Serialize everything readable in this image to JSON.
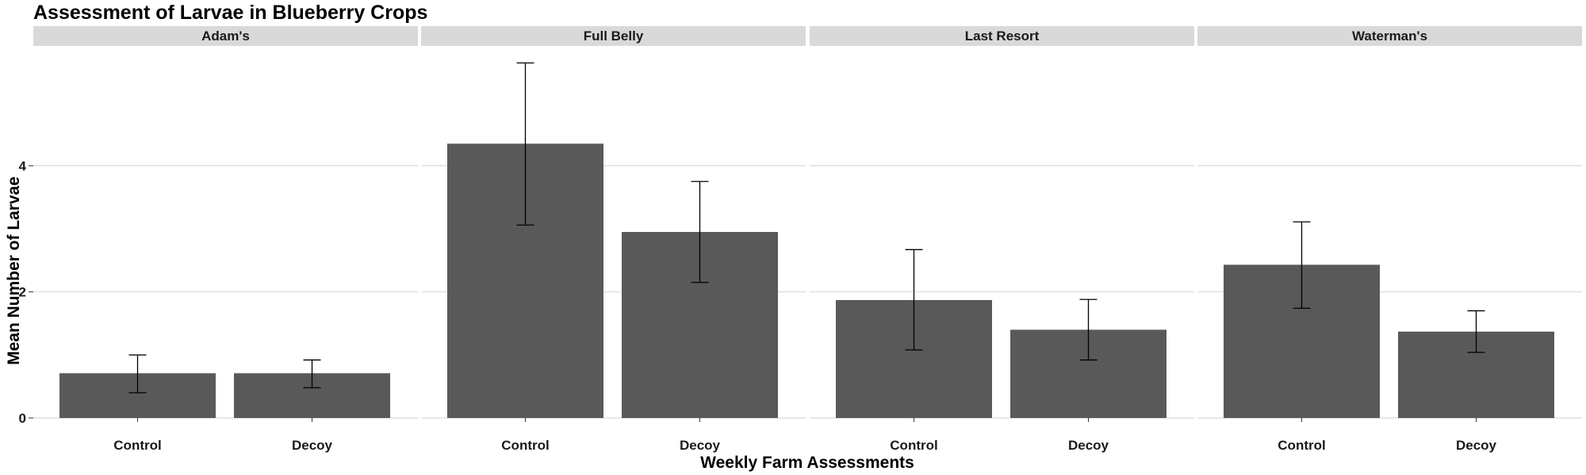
{
  "chart_data": {
    "type": "bar",
    "title": "Assessment of Larvae in Blueberry Crops",
    "xlabel": "Weekly Farm Assessments",
    "ylabel": "Mean Number of Larvae",
    "ylim": [
      0,
      5.9
    ],
    "y_ticks": [
      0,
      2,
      4
    ],
    "grid": true,
    "bar_color": "#595959",
    "strip_color": "#d9d9d9",
    "grid_color": "#d9d9d9",
    "categories": [
      "Control",
      "Decoy"
    ],
    "facets": [
      {
        "name": "Adam's",
        "values": [
          0.71,
          0.71
        ],
        "err_low": [
          0.4,
          0.48
        ],
        "err_high": [
          1.0,
          0.92
        ]
      },
      {
        "name": "Full Belly",
        "values": [
          4.35,
          2.95
        ],
        "err_low": [
          3.06,
          2.15
        ],
        "err_high": [
          5.63,
          3.75
        ]
      },
      {
        "name": "Last Resort",
        "values": [
          1.87,
          1.4
        ],
        "err_low": [
          1.08,
          0.92
        ],
        "err_high": [
          2.67,
          1.88
        ]
      },
      {
        "name": "Waterman's",
        "values": [
          2.43,
          1.37
        ],
        "err_low": [
          1.74,
          1.04
        ],
        "err_high": [
          3.11,
          1.7
        ]
      }
    ]
  }
}
